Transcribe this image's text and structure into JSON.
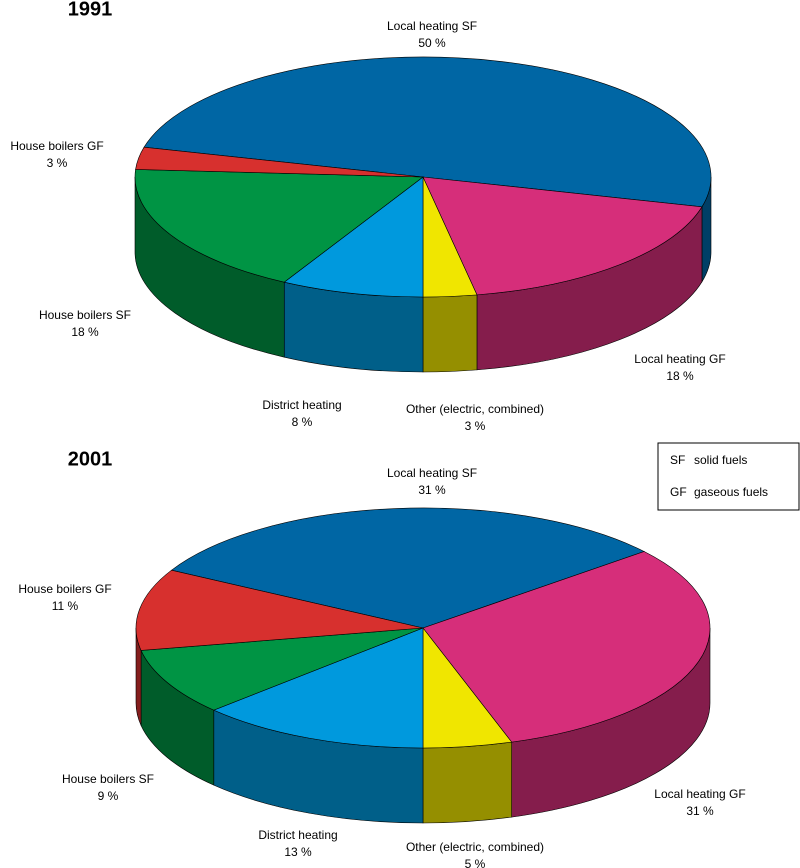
{
  "chart_data": [
    {
      "type": "pie",
      "title": "1991",
      "categories": [
        "Local heating SF",
        "Local heating GF",
        "Other (electric, combined)",
        "District heating",
        "House boilers SF",
        "House boilers GF"
      ],
      "values": [
        50,
        18,
        3,
        8,
        18,
        3
      ],
      "value_labels": [
        "50 %",
        "18 %",
        "3 %",
        "8 %",
        "18 %",
        "3 %"
      ],
      "colors": [
        "#0066a4",
        "#d62e7a",
        "#f0e600",
        "#0099dd",
        "#009444",
        "#d7302e"
      ]
    },
    {
      "type": "pie",
      "title": "2001",
      "categories": [
        "Local heating SF",
        "Local heating GF",
        "Other (electric, combined)",
        "District heating",
        "House boilers SF",
        "House boilers GF"
      ],
      "values": [
        31,
        31,
        5,
        13,
        9,
        11
      ],
      "value_labels": [
        "31 %",
        "31 %",
        "5 %",
        "13 %",
        "9 %",
        "11 %"
      ],
      "colors": [
        "#0066a4",
        "#d62e7a",
        "#f0e600",
        "#0099dd",
        "#009444",
        "#d7302e"
      ]
    }
  ],
  "legend": [
    {
      "abbr": "SF",
      "text": "solid fuels"
    },
    {
      "abbr": "GF",
      "text": "gaseous fuels"
    }
  ]
}
